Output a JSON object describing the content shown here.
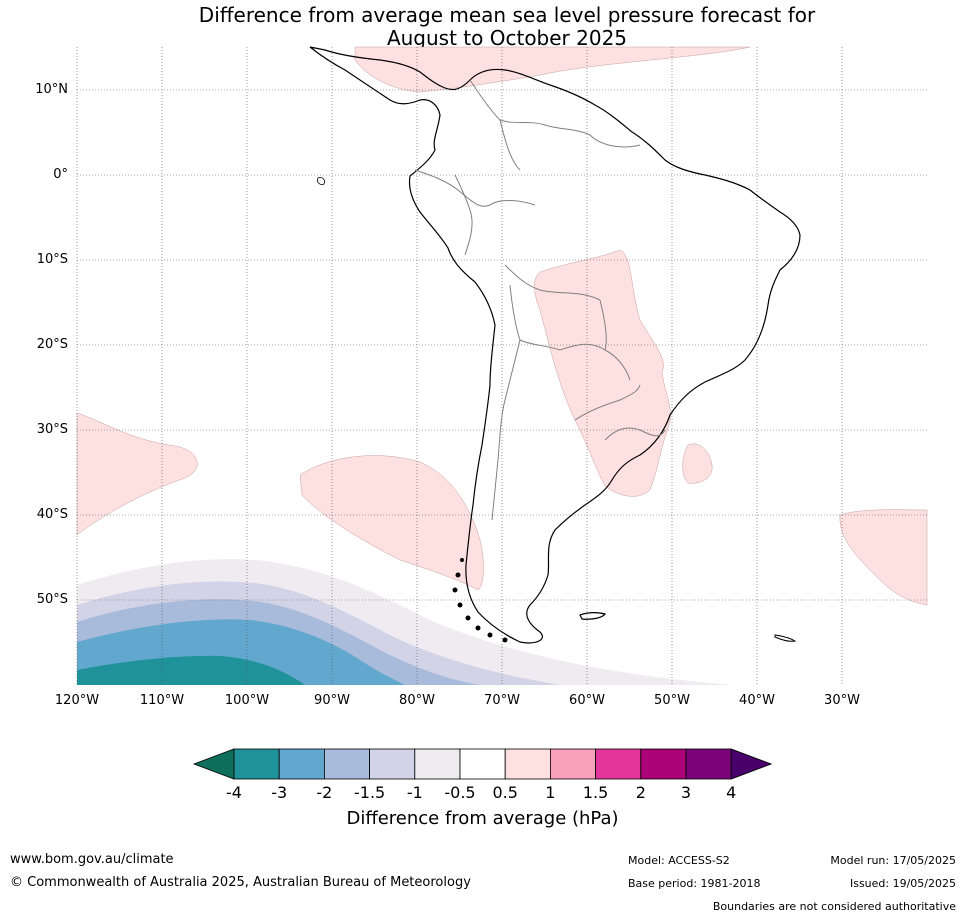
{
  "title": {
    "line1": "Difference from average mean sea level pressure forecast for",
    "line2": "August to October 2025"
  },
  "map": {
    "lat_labels": [
      "10°N",
      "0°",
      "10°S",
      "20°S",
      "30°S",
      "40°S",
      "50°S"
    ],
    "lon_labels": [
      "120°W",
      "110°W",
      "100°W",
      "90°W",
      "80°W",
      "70°W",
      "60°W",
      "50°W",
      "40°W",
      "30°W"
    ],
    "lat_range": [
      -60,
      15
    ],
    "lon_range": [
      -120,
      -20
    ],
    "colors": {
      "pos_0_5_1": "#fde0e0",
      "neg_0_5_1": "#efebf1",
      "neg_1_1_5": "#d3d3e7",
      "neg_1_5_2": "#a9bbdb",
      "neg_2_3": "#62a7cd",
      "neg_3_4": "#1f929a",
      "land_outline": "#000000",
      "border": "#808080",
      "grid": "#555555"
    }
  },
  "colorbar": {
    "ticks": [
      "-4",
      "-3",
      "-2",
      "-1.5",
      "-1",
      "-0.5",
      "0.5",
      "1",
      "1.5",
      "2",
      "3",
      "4"
    ],
    "colors": [
      "#0d6f5c",
      "#1f929a",
      "#62a7cd",
      "#a9bbdb",
      "#d3d3e7",
      "#efebf1",
      "#ffffff",
      "#fde0e0",
      "#f9a0bb",
      "#e2369a",
      "#ad0379",
      "#7a0378",
      "#4a006a"
    ],
    "label": "Difference from average (hPa)"
  },
  "footer": {
    "website": "www.bom.gov.au/climate",
    "copyright": "© Commonwealth of Australia 2025, Australian Bureau of Meteorology",
    "model": "Model: ACCESS-S2",
    "base_period": "Base period: 1981-2018",
    "model_run": "Model run: 17/05/2025",
    "issued": "Issued: 19/05/2025",
    "disclaimer": "Boundaries are not considered authoritative"
  }
}
